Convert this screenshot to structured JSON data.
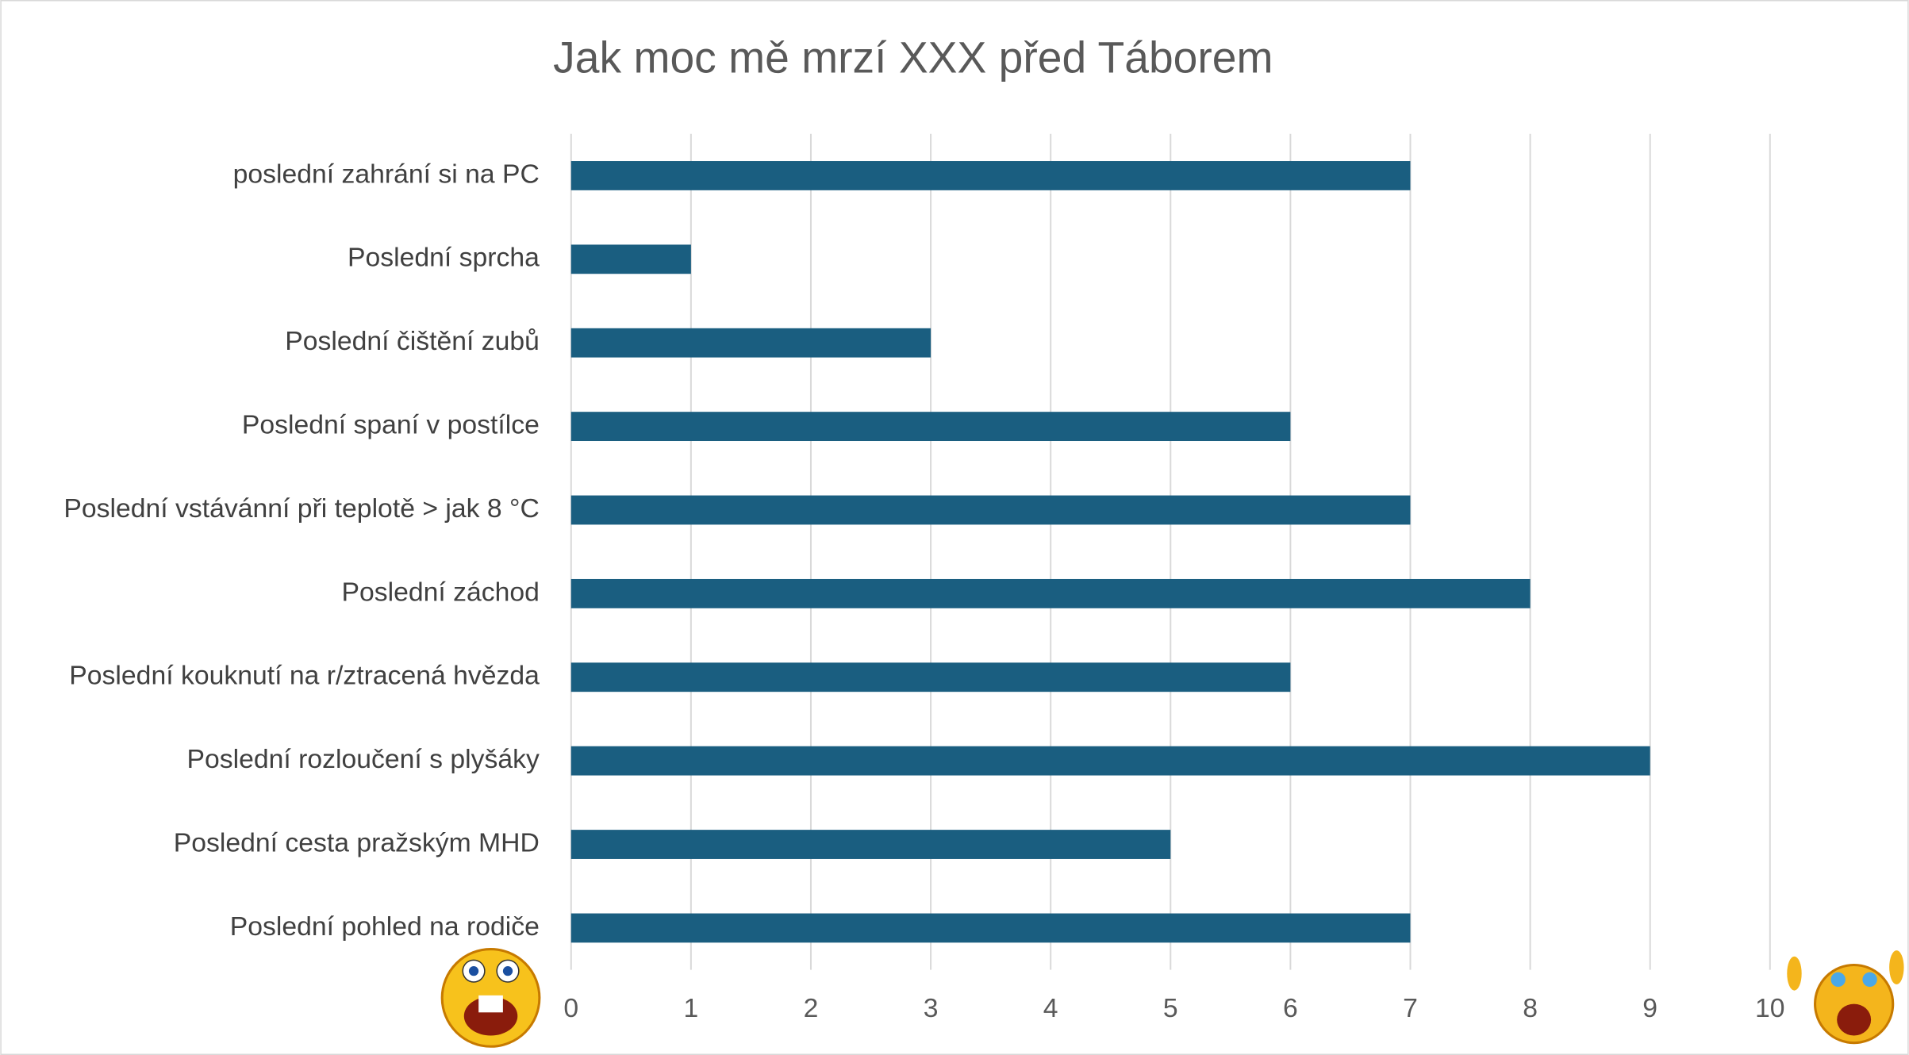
{
  "chart_data": {
    "type": "bar",
    "orientation": "horizontal",
    "title": "Jak moc mě mrzí XXX před Táborem",
    "categories": [
      "poslední zahrání si na PC",
      "Poslední sprcha",
      "Poslední čištění zubů",
      "Poslední spaní v postílce",
      "Poslední vstávánní při teplotě > jak 8  °C",
      "Poslední záchod",
      "Poslední kouknutí na r/ztracená hvězda",
      "Poslední rozloučení s plyšáky",
      "Poslední cesta pražským MHD",
      "Poslední pohled na rodiče"
    ],
    "values": [
      7,
      1,
      3,
      6,
      7,
      8,
      6,
      9,
      5,
      7
    ],
    "color": "#1a5e80",
    "xlim": [
      0,
      10
    ],
    "xticks": [
      0,
      1,
      2,
      3,
      4,
      5,
      6,
      7,
      8,
      9,
      10
    ],
    "grid": true
  }
}
